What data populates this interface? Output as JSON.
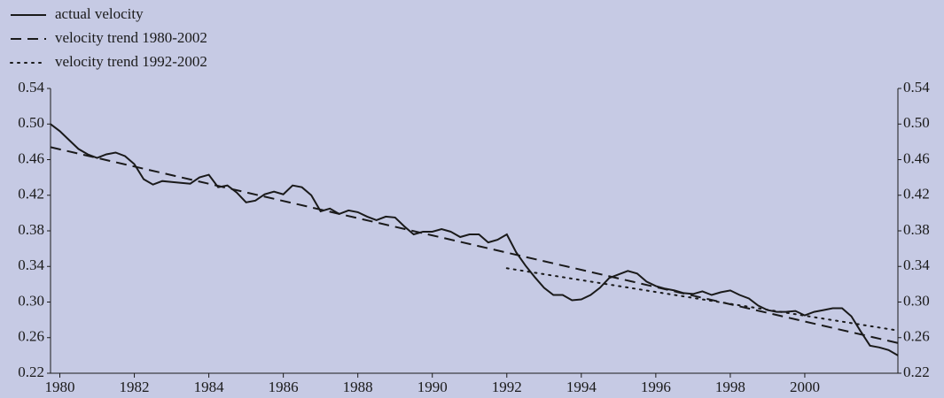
{
  "chart_data": {
    "type": "line",
    "background": "#c6cae4",
    "legend": "top-left",
    "series": [
      {
        "name": "actual velocity",
        "color": "#1a1a1a",
        "line_style": "solid",
        "x": [
          1979.75,
          1980,
          1980.25,
          1980.5,
          1980.75,
          1981,
          1981.25,
          1981.5,
          1981.75,
          1982,
          1982.25,
          1982.5,
          1982.75,
          1983,
          1983.25,
          1983.5,
          1983.75,
          1984,
          1984.25,
          1984.5,
          1984.75,
          1985,
          1985.25,
          1985.5,
          1985.75,
          1986,
          1986.25,
          1986.5,
          1986.75,
          1987,
          1987.25,
          1987.5,
          1987.75,
          1988,
          1988.25,
          1988.5,
          1988.75,
          1989,
          1989.25,
          1989.5,
          1989.75,
          1990,
          1990.25,
          1990.5,
          1990.75,
          1991,
          1991.25,
          1991.5,
          1991.75,
          1992,
          1992.25,
          1992.5,
          1992.75,
          1993,
          1993.25,
          1993.5,
          1993.75,
          1994,
          1994.25,
          1994.5,
          1994.75,
          1995,
          1995.25,
          1995.5,
          1995.75,
          1996,
          1996.25,
          1996.5,
          1996.75,
          1997,
          1997.25,
          1997.5,
          1997.75,
          1998,
          1998.25,
          1998.5,
          1998.75,
          1999,
          1999.25,
          1999.5,
          1999.75,
          2000,
          2000.25,
          2000.5,
          2000.75,
          2001,
          2001.25,
          2001.5,
          2001.75,
          2002,
          2002.25,
          2002.5
        ],
        "values": [
          0.5,
          0.492,
          0.482,
          0.472,
          0.466,
          0.462,
          0.466,
          0.468,
          0.464,
          0.455,
          0.438,
          0.432,
          0.436,
          0.435,
          0.434,
          0.433,
          0.44,
          0.443,
          0.429,
          0.431,
          0.423,
          0.412,
          0.414,
          0.421,
          0.424,
          0.421,
          0.431,
          0.429,
          0.42,
          0.402,
          0.405,
          0.399,
          0.403,
          0.401,
          0.396,
          0.392,
          0.396,
          0.395,
          0.385,
          0.376,
          0.379,
          0.379,
          0.382,
          0.379,
          0.373,
          0.376,
          0.376,
          0.367,
          0.37,
          0.376,
          0.356,
          0.341,
          0.328,
          0.316,
          0.308,
          0.308,
          0.302,
          0.303,
          0.308,
          0.316,
          0.327,
          0.331,
          0.335,
          0.332,
          0.323,
          0.318,
          0.315,
          0.313,
          0.31,
          0.309,
          0.312,
          0.308,
          0.311,
          0.313,
          0.308,
          0.304,
          0.296,
          0.291,
          0.289,
          0.289,
          0.29,
          0.285,
          0.289,
          0.291,
          0.293,
          0.293,
          0.284,
          0.267,
          0.251,
          0.249,
          0.246,
          0.24
        ]
      },
      {
        "name": "velocity trend 1980-2002",
        "color": "#1a1a1a",
        "line_style": "dashed",
        "x": [
          1979.75,
          2002.5
        ],
        "values": [
          0.474,
          0.254
        ]
      },
      {
        "name": "velocity trend 1992-2002",
        "color": "#1a1a1a",
        "line_style": "dotted",
        "x": [
          1992.0,
          2002.5
        ],
        "values": [
          0.338,
          0.268
        ]
      }
    ],
    "xlim": [
      1979.75,
      2002.5
    ],
    "xticks": [
      1980,
      1982,
      1984,
      1986,
      1988,
      1990,
      1992,
      1994,
      1996,
      1998,
      2000
    ],
    "ylim": [
      0.22,
      0.54
    ],
    "yticks": [
      {
        "value": 0.22,
        "label": "0.22"
      },
      {
        "value": 0.26,
        "label": "0.26"
      },
      {
        "value": 0.3,
        "label": "0.30"
      },
      {
        "value": 0.34,
        "label": "0.34"
      },
      {
        "value": 0.38,
        "label": "0.38"
      },
      {
        "value": 0.42,
        "label": "0.42"
      },
      {
        "value": 0.46,
        "label": "0.46"
      },
      {
        "value": 0.5,
        "label": "0.50"
      },
      {
        "value": 0.54,
        "label": "0.54"
      }
    ],
    "y2lim": [
      0.22,
      0.54
    ],
    "y2ticks": [
      {
        "value": 0.22,
        "label": "0.22"
      },
      {
        "value": 0.26,
        "label": "0.26"
      },
      {
        "value": 0.3,
        "label": "0.30"
      },
      {
        "value": 0.34,
        "label": "0.34"
      },
      {
        "value": 0.38,
        "label": "0.38"
      },
      {
        "value": 0.42,
        "label": "0.42"
      },
      {
        "value": 0.46,
        "label": "0.46"
      },
      {
        "value": 0.5,
        "label": "0.50"
      },
      {
        "value": 0.54,
        "label": "0.54"
      }
    ]
  }
}
